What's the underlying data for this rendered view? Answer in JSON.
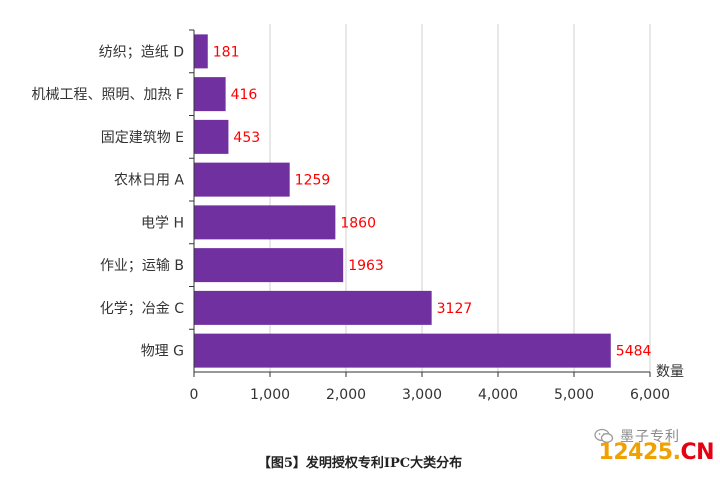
{
  "chart_data": {
    "type": "bar",
    "orientation": "horizontal",
    "categories": [
      "纺织；造纸 D",
      "机械工程、照明、加热 F",
      "固定建筑物 E",
      "农林日用 A",
      "电学 H",
      "作业；运输 B",
      "化学；冶金 C",
      "物理 G"
    ],
    "values": [
      181,
      416,
      453,
      1259,
      1860,
      1963,
      3127,
      5484
    ],
    "data_labels": [
      "181",
      "416",
      "453",
      "1259",
      "1860",
      "1963",
      "3127",
      "5484"
    ],
    "xlabel": "数量",
    "ylabel": "",
    "xlim": [
      0,
      6000
    ],
    "xticks": [
      0,
      1000,
      2000,
      3000,
      4000,
      5000,
      6000
    ],
    "xtick_labels": [
      "0",
      "1,000",
      "2,000",
      "3,000",
      "4,000",
      "5,000",
      "6,000"
    ],
    "grid": "vertical",
    "legend": "none"
  },
  "caption": "【图5】发明授权专利IPC大类分布",
  "watermark": {
    "account": "墨子专利",
    "site_number": "12425",
    "site_dot": ".",
    "site_suffix": "CN"
  },
  "colors": {
    "bar": "#7030a0",
    "data_label": "#ff0000",
    "grid": "#d0d0d0",
    "axis": "#333333"
  }
}
